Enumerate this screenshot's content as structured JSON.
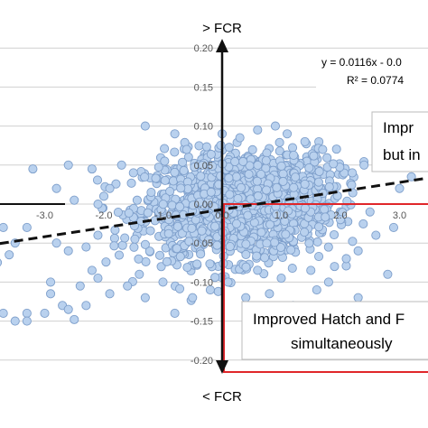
{
  "chart_data": {
    "type": "scatter",
    "title": "",
    "xlabel": "",
    "ylabel": "",
    "y_axis_top_label": "> FCR",
    "y_axis_bottom_label": "< FCR",
    "xlim": [
      -4.0,
      4.0
    ],
    "ylim": [
      -0.2,
      0.2
    ],
    "x_ticks": [
      "-3.0",
      "-2.0",
      "-1.0",
      "0.0",
      "1.0",
      "2.0",
      "3.0"
    ],
    "y_ticks": [
      "0.20",
      "0.15",
      "0.10",
      "0.05",
      "0.00",
      "-0.05",
      "-0.10",
      "-0.15",
      "-0.20"
    ],
    "grid": true,
    "marker_color": "#b9d1ee",
    "marker_edge": "#7e9fcb",
    "trendline": {
      "style": "dashed",
      "slope": 0.0116,
      "equation": "y = 0.0116x - 0.0",
      "r2": "R² = 0.0774"
    },
    "annotations": {
      "top_right_box_line1": "Impr",
      "top_right_box_line2": "but in",
      "bottom_box_line1": "Improved Hatch and F",
      "bottom_box_line2": "simultaneously"
    },
    "cluster": {
      "center": [
        0.3,
        0.0
      ],
      "std": [
        0.8,
        0.035
      ],
      "count": 1500
    },
    "points": [
      [
        -4.0,
        -0.035
      ],
      [
        -3.9,
        -0.03
      ],
      [
        -3.7,
        -0.03
      ],
      [
        -3.5,
        -0.05
      ],
      [
        -3.3,
        -0.03
      ],
      [
        -3.6,
        -0.065
      ],
      [
        -3.8,
        -0.075
      ],
      [
        -4.0,
        -0.12
      ],
      [
        -3.9,
        -0.145
      ],
      [
        -3.7,
        -0.14
      ],
      [
        -3.5,
        -0.15
      ],
      [
        -3.3,
        -0.14
      ],
      [
        -3.3,
        -0.15
      ],
      [
        -3.0,
        -0.14
      ],
      [
        -2.9,
        -0.115
      ],
      [
        -2.9,
        -0.1
      ],
      [
        -2.7,
        -0.13
      ],
      [
        -2.6,
        -0.135
      ],
      [
        -2.5,
        -0.148
      ],
      [
        -2.4,
        -0.105
      ],
      [
        -2.3,
        -0.13
      ],
      [
        -2.2,
        -0.085
      ],
      [
        -2.1,
        -0.095
      ],
      [
        -2.8,
        -0.05
      ],
      [
        -2.6,
        -0.06
      ],
      [
        -2.3,
        -0.055
      ],
      [
        -2.1,
        -0.04
      ],
      [
        -2.0,
        0.01
      ],
      [
        -2.5,
        0.005
      ],
      [
        -1.9,
        0.02
      ],
      [
        -1.7,
        0.05
      ],
      [
        -2.2,
        0.045
      ],
      [
        -1.5,
        0.04
      ],
      [
        -1.2,
        0.015
      ],
      [
        -0.9,
        -0.02
      ],
      [
        -0.6,
        0.07
      ],
      [
        -0.8,
        0.09
      ],
      [
        -1.3,
        0.1
      ],
      [
        -3.2,
        0.045
      ],
      [
        -2.6,
        0.05
      ],
      [
        -2.8,
        0.02
      ],
      [
        -1.0,
        -0.1
      ],
      [
        -1.3,
        -0.12
      ],
      [
        -0.8,
        -0.14
      ],
      [
        -0.5,
        -0.12
      ],
      [
        -1.9,
        -0.115
      ],
      [
        -1.6,
        -0.105
      ],
      [
        -1.4,
        -0.09
      ],
      [
        2.7,
        0.06
      ],
      [
        2.4,
        0.05
      ],
      [
        2.2,
        0.04
      ],
      [
        2.0,
        -0.02
      ],
      [
        2.5,
        -0.01
      ],
      [
        3.0,
        0.02
      ],
      [
        3.2,
        0.035
      ],
      [
        2.6,
        -0.04
      ],
      [
        2.3,
        -0.06
      ],
      [
        1.8,
        -0.1
      ],
      [
        1.9,
        -0.08
      ],
      [
        1.6,
        -0.11
      ],
      [
        2.1,
        -0.07
      ],
      [
        2.9,
        -0.03
      ],
      [
        3.4,
        0.05
      ],
      [
        1.4,
        0.08
      ],
      [
        1.7,
        0.07
      ],
      [
        1.1,
        0.09
      ],
      [
        0.9,
        0.1
      ],
      [
        0.6,
        0.095
      ],
      [
        0.3,
        0.085
      ],
      [
        0.0,
        0.09
      ],
      [
        0.4,
        -0.12
      ],
      [
        0.8,
        -0.115
      ],
      [
        1.2,
        -0.13
      ],
      [
        -0.2,
        -0.11
      ],
      [
        0.1,
        -0.1
      ],
      [
        1.0,
        -0.095
      ],
      [
        1.5,
        -0.085
      ],
      [
        2.3,
        -0.12
      ],
      [
        2.8,
        -0.09
      ],
      [
        3.6,
        0.07
      ]
    ]
  }
}
